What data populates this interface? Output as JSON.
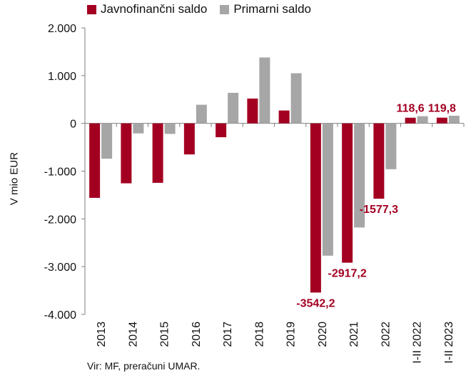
{
  "chart_data": {
    "type": "bar",
    "categories": [
      "2013",
      "2014",
      "2015",
      "2016",
      "2017",
      "2018",
      "2019",
      "2020",
      "2021",
      "2022",
      "I-II 2022",
      "I-II 2023"
    ],
    "series": [
      {
        "name": "Javnofinančni saldo",
        "color": "#a30021",
        "values": [
          -1560,
          -1255,
          -1245,
          -650,
          -290,
          520,
          270,
          -3542.2,
          -2917.2,
          -1577.3,
          118.6,
          119.8
        ]
      },
      {
        "name": "Primarni saldo",
        "color": "#a6a6a6",
        "values": [
          -740,
          -210,
          -220,
          390,
          640,
          1380,
          1050,
          -2770,
          -2180,
          -960,
          150,
          160
        ]
      }
    ],
    "data_labels": [
      {
        "category": "2020",
        "series": 0,
        "text": "-3542,2",
        "position": "below"
      },
      {
        "category": "2021",
        "series": 0,
        "text": "-2917,2",
        "position": "below"
      },
      {
        "category": "2022",
        "series": 0,
        "text": "-1577,3",
        "position": "below"
      },
      {
        "category": "I-II 2022",
        "series": 0,
        "text": "118,6",
        "position": "above"
      },
      {
        "category": "I-II 2023",
        "series": 0,
        "text": "119,8",
        "position": "above"
      }
    ],
    "data_label_color": "#a30021",
    "ylabel": "V mio EUR",
    "ylim": [
      -4000,
      2000
    ],
    "yticks": [
      2000,
      1000,
      0,
      -1000,
      -2000,
      -3000,
      -4000
    ],
    "ytick_labels": [
      "2.000",
      "1.000",
      "0",
      "-1.000",
      "-2.000",
      "-3.000",
      "-4.000"
    ],
    "legend_position": "top-left",
    "grid": false
  },
  "source_note": "Vir: MF, preračuni UMAR."
}
